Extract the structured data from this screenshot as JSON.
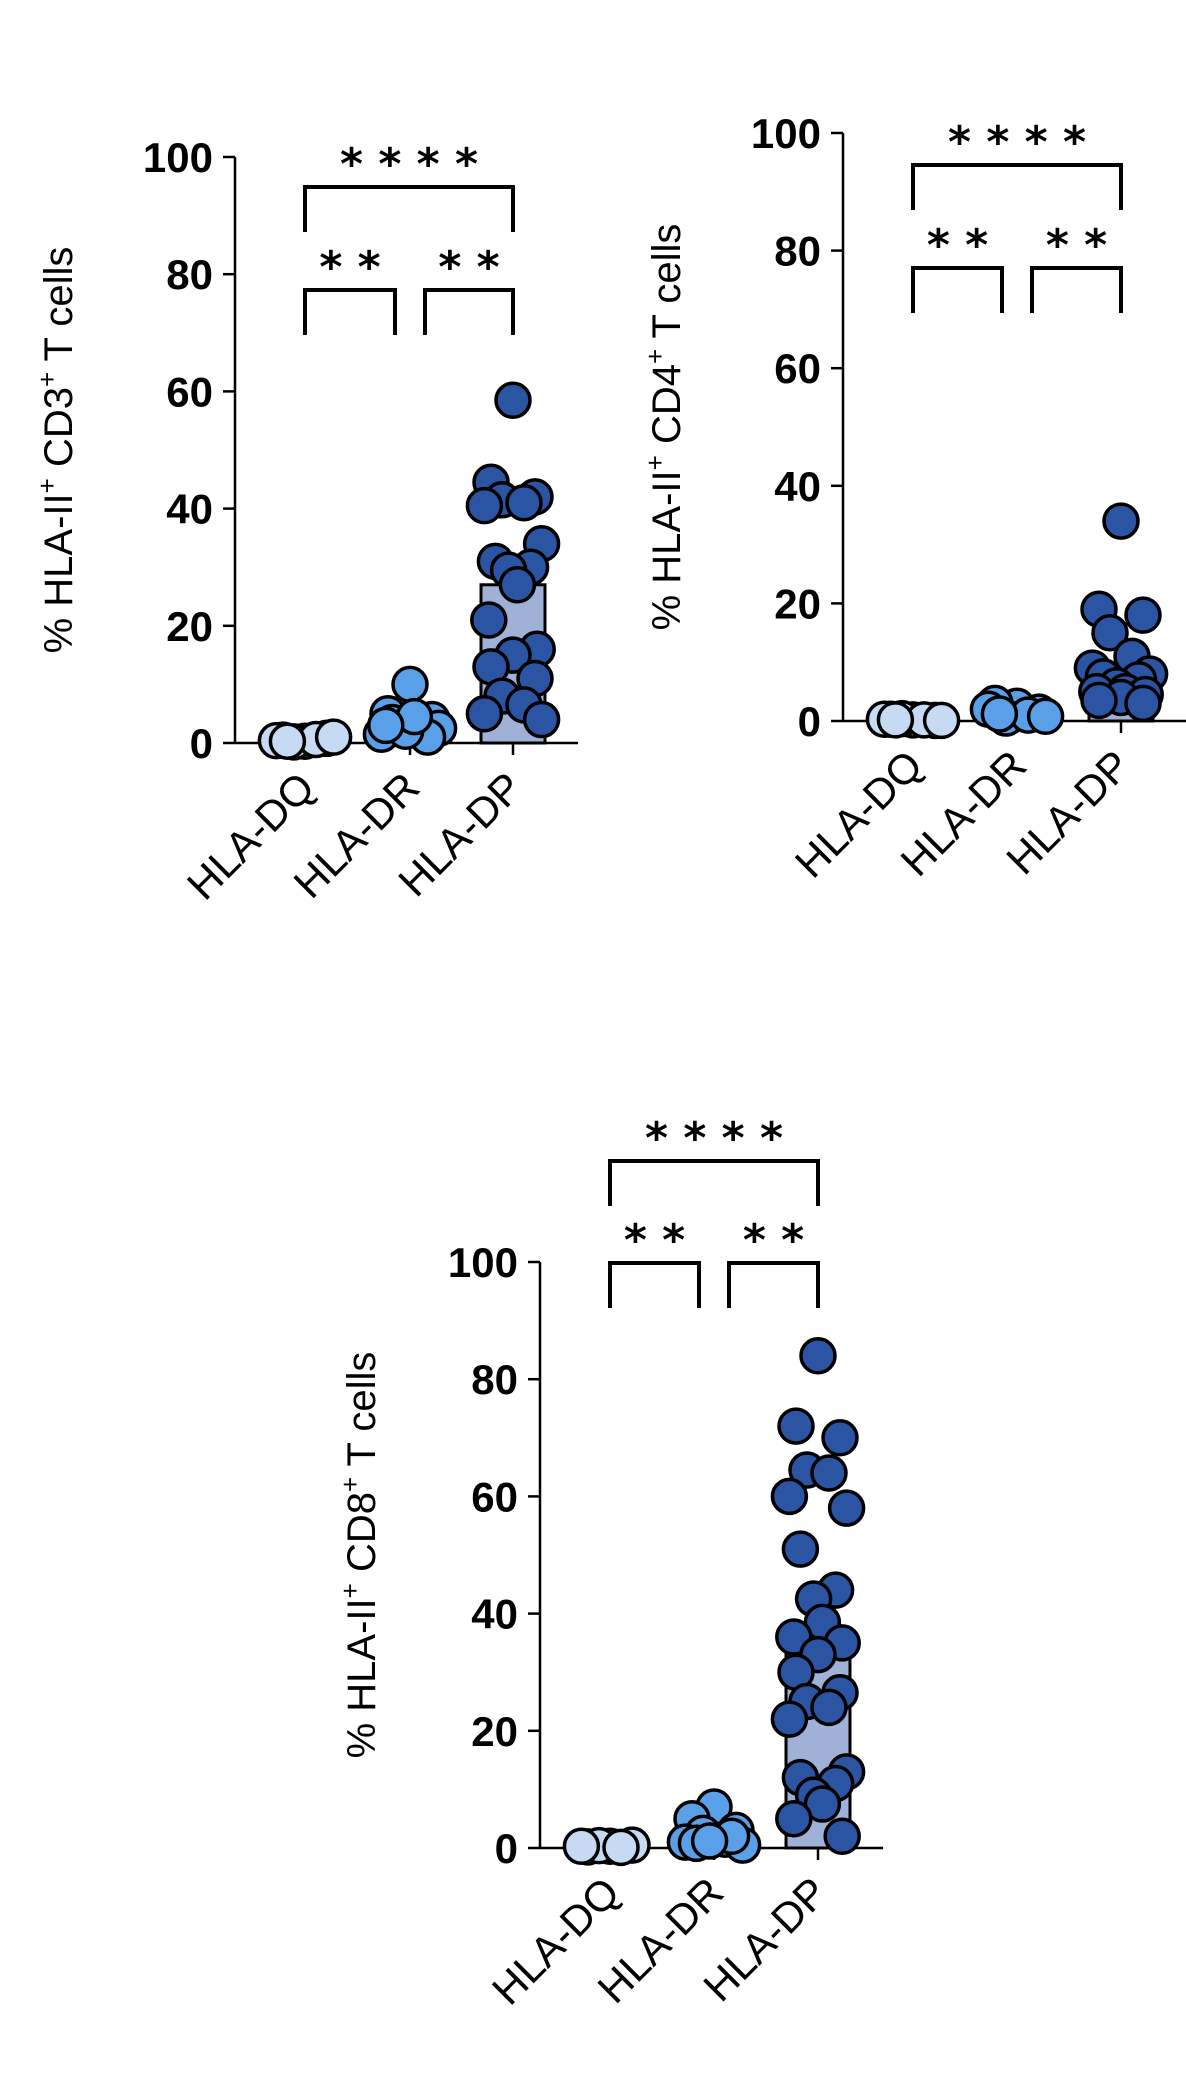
{
  "chart_data": [
    {
      "type": "bar",
      "ylabel_parts": [
        "% HLA-II",
        "+",
        " CD3",
        "+",
        " T cells"
      ],
      "categories": [
        "HLA-DQ",
        "HLA-DR",
        "HLA-DP"
      ],
      "ylim": [
        0,
        100
      ],
      "yticks": [
        0,
        20,
        40,
        60,
        80,
        100
      ],
      "ytick_labels": [
        "0",
        "20",
        "40",
        "60",
        "80",
        "100"
      ],
      "bar_means": [
        0.5,
        3,
        27
      ],
      "points": [
        [
          0.3,
          0.5,
          0.8,
          0.2,
          0.6,
          0.4,
          1.0,
          0.3
        ],
        [
          10,
          5,
          4,
          3,
          2,
          1.5,
          2.5,
          3.5,
          1,
          2,
          4.5,
          3
        ],
        [
          58.5,
          44.5,
          42,
          41.5,
          41,
          40.5,
          34,
          31,
          30,
          29.5,
          27,
          21,
          16,
          15,
          13,
          11,
          8,
          6.5,
          5,
          4
        ]
      ],
      "colors": [
        "#c6dbf3",
        "#5aa0e8",
        "#2b54a3"
      ],
      "bar_colors": [
        "#e4eefb",
        "#bcd7f5",
        "#9fb1d6"
      ],
      "significance": [
        {
          "label": "* * * *",
          "from": 0,
          "to": 2,
          "level": 2
        },
        {
          "label": "* *",
          "from": 0,
          "to": 1,
          "level": 1
        },
        {
          "label": "* *",
          "from": 1,
          "to": 2,
          "level": 1
        }
      ]
    },
    {
      "type": "bar",
      "ylabel_parts": [
        "% HLA-II",
        "+",
        " CD4",
        "+",
        " T cells"
      ],
      "categories": [
        "HLA-DQ",
        "HLA-DR",
        "HLA-DP"
      ],
      "ylim": [
        0,
        100
      ],
      "yticks": [
        0,
        20,
        40,
        60,
        80,
        100
      ],
      "ytick_labels": [
        "0",
        "20",
        "40",
        "60",
        "80",
        "100"
      ],
      "bar_means": [
        0.3,
        1.5,
        8
      ],
      "points": [
        [
          0.2,
          0.3,
          0.1,
          0.4,
          0.2,
          0.3,
          0.1,
          0.2
        ],
        [
          2.5,
          3,
          1.5,
          0.5,
          1,
          2,
          0.8,
          1.2
        ],
        [
          34,
          19,
          18,
          15,
          11,
          9,
          8,
          7.5,
          7,
          6,
          5,
          5,
          4.5,
          4,
          3.5,
          3
        ]
      ],
      "colors": [
        "#c6dbf3",
        "#5aa0e8",
        "#2b54a3"
      ],
      "bar_colors": [
        "#e4eefb",
        "#bcd7f5",
        "#9fb1d6"
      ],
      "significance": [
        {
          "label": "* * * *",
          "from": 0,
          "to": 2,
          "level": 2
        },
        {
          "label": "* *",
          "from": 0,
          "to": 1,
          "level": 1
        },
        {
          "label": "* *",
          "from": 1,
          "to": 2,
          "level": 1
        }
      ]
    },
    {
      "type": "bar",
      "ylabel_parts": [
        "% HLA-II",
        "+",
        " CD8",
        "+",
        " T cells"
      ],
      "categories": [
        "HLA-DQ",
        "HLA-DR",
        "HLA-DP"
      ],
      "ylim": [
        0,
        100
      ],
      "yticks": [
        0,
        20,
        40,
        60,
        80,
        100
      ],
      "ytick_labels": [
        "0",
        "20",
        "40",
        "60",
        "80",
        "100"
      ],
      "bar_means": [
        0.3,
        2,
        36
      ],
      "points": [
        [
          0.3,
          0.2,
          0.5,
          0.4,
          0.1,
          0.3
        ],
        [
          7,
          5,
          3,
          2.5,
          1.5,
          1,
          0.5,
          0.8,
          2,
          1.2
        ],
        [
          84,
          72,
          70,
          64.5,
          64,
          60,
          58,
          51,
          44,
          42.5,
          38.5,
          36,
          35,
          33,
          30,
          26.5,
          25,
          24,
          22,
          13,
          12,
          11,
          9,
          7.5,
          5,
          2
        ]
      ],
      "colors": [
        "#c6dbf3",
        "#5aa0e8",
        "#2b54a3"
      ],
      "bar_colors": [
        "#e4eefb",
        "#bcd7f5",
        "#9fb1d6"
      ],
      "significance": [
        {
          "label": "* * * *",
          "from": 0,
          "to": 2,
          "level": 2
        },
        {
          "label": "* *",
          "from": 0,
          "to": 1,
          "level": 1
        },
        {
          "label": "* *",
          "from": 1,
          "to": 2,
          "level": 1
        }
      ]
    }
  ]
}
